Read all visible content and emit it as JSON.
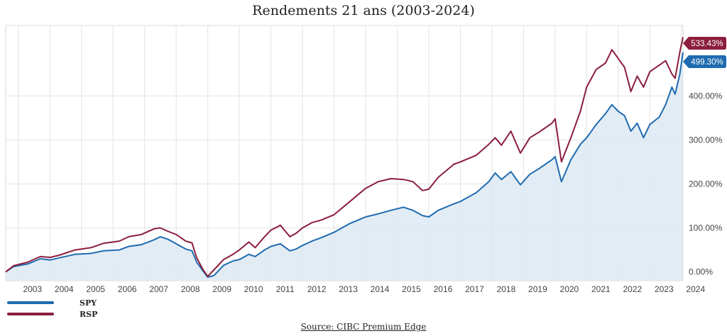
{
  "chart_data": {
    "type": "line",
    "title": "Rendements 21 ans (2003-2024)",
    "source": "Source: CIBC Premium Edge",
    "x_tick_labels": [
      "2003",
      "2004",
      "2005",
      "2006",
      "2007",
      "2008",
      "2009",
      "2010",
      "2011",
      "2012",
      "2013",
      "2014",
      "2015",
      "2016",
      "2017",
      "2018",
      "2019",
      "2020",
      "2021",
      "2022",
      "2023",
      "2024"
    ],
    "y_tick_labels": [
      "0.00%",
      "100.00%",
      "200.00%",
      "300.00%",
      "400.00%"
    ],
    "xlim": [
      2002.6,
      2024.05
    ],
    "ylim": [
      -20,
      560
    ],
    "grid": true,
    "legend_position": "bottom-left",
    "series": [
      {
        "name": "SPY",
        "color": "#1f6bb0",
        "end_label": "499.30%",
        "filled": true,
        "points": [
          [
            2002.6,
            0
          ],
          [
            2002.85,
            12
          ],
          [
            2003.3,
            18
          ],
          [
            2003.7,
            30
          ],
          [
            2004.0,
            27
          ],
          [
            2004.3,
            32
          ],
          [
            2004.8,
            40
          ],
          [
            2005.3,
            42
          ],
          [
            2005.7,
            48
          ],
          [
            2006.2,
            50
          ],
          [
            2006.5,
            58
          ],
          [
            2006.9,
            62
          ],
          [
            2007.3,
            73
          ],
          [
            2007.5,
            80
          ],
          [
            2007.75,
            74
          ],
          [
            2008.0,
            64
          ],
          [
            2008.3,
            52
          ],
          [
            2008.5,
            48
          ],
          [
            2008.65,
            22
          ],
          [
            2008.85,
            2
          ],
          [
            2009.0,
            -12
          ],
          [
            2009.2,
            -8
          ],
          [
            2009.5,
            15
          ],
          [
            2009.8,
            25
          ],
          [
            2010.0,
            28
          ],
          [
            2010.3,
            40
          ],
          [
            2010.5,
            35
          ],
          [
            2010.8,
            50
          ],
          [
            2011.0,
            58
          ],
          [
            2011.3,
            64
          ],
          [
            2011.6,
            48
          ],
          [
            2011.8,
            52
          ],
          [
            2012.0,
            60
          ],
          [
            2012.3,
            70
          ],
          [
            2012.6,
            78
          ],
          [
            2013.0,
            90
          ],
          [
            2013.5,
            110
          ],
          [
            2014.0,
            125
          ],
          [
            2014.4,
            132
          ],
          [
            2014.8,
            140
          ],
          [
            2015.2,
            147
          ],
          [
            2015.5,
            140
          ],
          [
            2015.8,
            128
          ],
          [
            2016.0,
            125
          ],
          [
            2016.3,
            140
          ],
          [
            2016.8,
            155
          ],
          [
            2017.0,
            160
          ],
          [
            2017.5,
            180
          ],
          [
            2017.9,
            205
          ],
          [
            2018.1,
            225
          ],
          [
            2018.3,
            210
          ],
          [
            2018.6,
            228
          ],
          [
            2018.9,
            198
          ],
          [
            2019.2,
            222
          ],
          [
            2019.5,
            235
          ],
          [
            2019.9,
            255
          ],
          [
            2020.0,
            262
          ],
          [
            2020.2,
            205
          ],
          [
            2020.5,
            255
          ],
          [
            2020.8,
            290
          ],
          [
            2021.0,
            305
          ],
          [
            2021.3,
            335
          ],
          [
            2021.6,
            360
          ],
          [
            2021.8,
            380
          ],
          [
            2022.0,
            365
          ],
          [
            2022.2,
            355
          ],
          [
            2022.4,
            320
          ],
          [
            2022.6,
            338
          ],
          [
            2022.8,
            305
          ],
          [
            2023.0,
            335
          ],
          [
            2023.3,
            352
          ],
          [
            2023.5,
            380
          ],
          [
            2023.7,
            420
          ],
          [
            2023.8,
            404
          ],
          [
            2023.95,
            450
          ],
          [
            2024.05,
            499.3
          ]
        ]
      },
      {
        "name": "RSP",
        "color": "#8b1d3d",
        "end_label": "533.43%",
        "filled": false,
        "points": [
          [
            2002.6,
            0
          ],
          [
            2002.85,
            14
          ],
          [
            2003.3,
            22
          ],
          [
            2003.7,
            35
          ],
          [
            2004.0,
            33
          ],
          [
            2004.3,
            38
          ],
          [
            2004.8,
            50
          ],
          [
            2005.3,
            55
          ],
          [
            2005.7,
            65
          ],
          [
            2006.2,
            70
          ],
          [
            2006.5,
            80
          ],
          [
            2006.9,
            85
          ],
          [
            2007.3,
            98
          ],
          [
            2007.5,
            100
          ],
          [
            2007.75,
            92
          ],
          [
            2008.0,
            85
          ],
          [
            2008.3,
            70
          ],
          [
            2008.5,
            66
          ],
          [
            2008.65,
            32
          ],
          [
            2008.85,
            5
          ],
          [
            2009.0,
            -10
          ],
          [
            2009.2,
            5
          ],
          [
            2009.5,
            28
          ],
          [
            2009.8,
            40
          ],
          [
            2010.0,
            50
          ],
          [
            2010.3,
            68
          ],
          [
            2010.5,
            55
          ],
          [
            2010.8,
            80
          ],
          [
            2011.0,
            95
          ],
          [
            2011.3,
            106
          ],
          [
            2011.6,
            80
          ],
          [
            2011.8,
            88
          ],
          [
            2012.0,
            100
          ],
          [
            2012.3,
            112
          ],
          [
            2012.6,
            118
          ],
          [
            2013.0,
            130
          ],
          [
            2013.5,
            160
          ],
          [
            2014.0,
            190
          ],
          [
            2014.4,
            205
          ],
          [
            2014.8,
            212
          ],
          [
            2015.2,
            210
          ],
          [
            2015.5,
            205
          ],
          [
            2015.8,
            185
          ],
          [
            2016.0,
            188
          ],
          [
            2016.3,
            215
          ],
          [
            2016.8,
            245
          ],
          [
            2017.0,
            250
          ],
          [
            2017.5,
            265
          ],
          [
            2017.9,
            290
          ],
          [
            2018.1,
            305
          ],
          [
            2018.3,
            288
          ],
          [
            2018.6,
            320
          ],
          [
            2018.9,
            270
          ],
          [
            2019.2,
            305
          ],
          [
            2019.5,
            318
          ],
          [
            2019.9,
            338
          ],
          [
            2020.0,
            348
          ],
          [
            2020.2,
            250
          ],
          [
            2020.5,
            305
          ],
          [
            2020.8,
            365
          ],
          [
            2021.0,
            420
          ],
          [
            2021.3,
            460
          ],
          [
            2021.6,
            475
          ],
          [
            2021.8,
            505
          ],
          [
            2022.0,
            485
          ],
          [
            2022.2,
            465
          ],
          [
            2022.4,
            410
          ],
          [
            2022.6,
            445
          ],
          [
            2022.8,
            420
          ],
          [
            2023.0,
            455
          ],
          [
            2023.3,
            470
          ],
          [
            2023.5,
            480
          ],
          [
            2023.7,
            450
          ],
          [
            2023.8,
            440
          ],
          [
            2023.95,
            500
          ],
          [
            2024.05,
            533.43
          ]
        ]
      }
    ]
  }
}
